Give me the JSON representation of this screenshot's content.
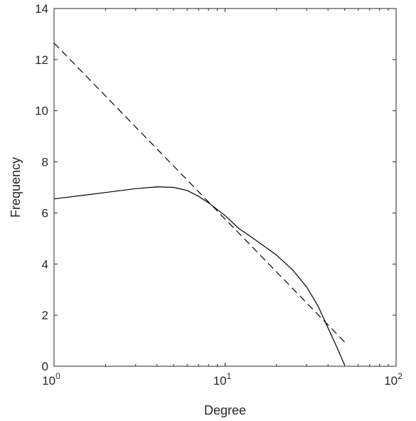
{
  "chart_data": {
    "type": "line",
    "xscale": "log",
    "xlim": [
      1,
      100
    ],
    "ylim": [
      0,
      14
    ],
    "xlabel": "Degree",
    "ylabel": "Frequency",
    "x_ticks": [
      1,
      10,
      100
    ],
    "x_tick_labels": [
      {
        "base": "10",
        "exp": "0"
      },
      {
        "base": "10",
        "exp": "1"
      },
      {
        "base": "10",
        "exp": "2"
      }
    ],
    "y_ticks": [
      0,
      2,
      4,
      6,
      8,
      10,
      12,
      14
    ],
    "y_tick_labels": [
      "0",
      "2",
      "4",
      "6",
      "8",
      "10",
      "12",
      "14"
    ],
    "grid": false,
    "box": true,
    "series": [
      {
        "style": "solid",
        "color": "#000000",
        "x": [
          1,
          2,
          3,
          4,
          5,
          6,
          7,
          8,
          10,
          12,
          15,
          20,
          25,
          30,
          35,
          40,
          45,
          50
        ],
        "y": [
          6.55,
          6.8,
          6.95,
          7.02,
          7.0,
          6.88,
          6.65,
          6.4,
          5.9,
          5.4,
          4.95,
          4.35,
          3.75,
          3.1,
          2.35,
          1.5,
          0.75,
          0.05
        ]
      },
      {
        "style": "dashed",
        "color": "#000000",
        "x": [
          1,
          50
        ],
        "y": [
          12.65,
          0.95
        ]
      }
    ]
  }
}
